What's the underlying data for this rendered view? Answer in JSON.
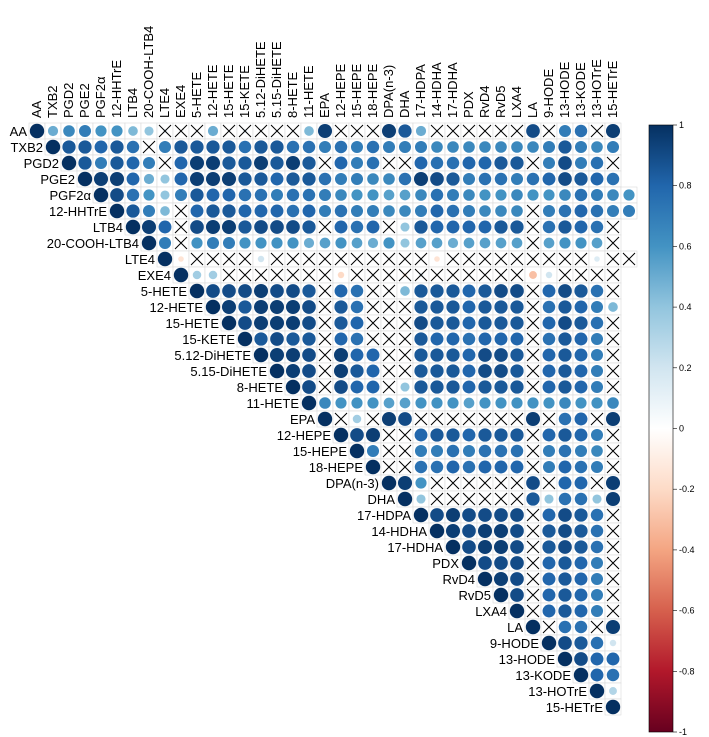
{
  "chart_data": {
    "type": "heatmap",
    "title": "",
    "variables": [
      "AA",
      "TXB2",
      "PGD2",
      "PGE2",
      "PGF2α",
      "12-HHTrE",
      "LTB4",
      "20-COOH-LTB4",
      "LTE4",
      "EXE4",
      "5-HETE",
      "12-HETE",
      "15-HETE",
      "15-KETE",
      "5.12-DiHETE",
      "5.15-DiHETE",
      "8-HETE",
      "11-HETE",
      "EPA",
      "12-HEPE",
      "15-HEPE",
      "18-HEPE",
      "DPA(n-3)",
      "DHA",
      "17-HDPA",
      "14-HDHA",
      "17-HDHA",
      "PDX",
      "RvD4",
      "RvD5",
      "LXA4",
      "LA",
      "9-HODE",
      "13-HODE",
      "13-KODE",
      "13-HOTrE",
      "15-HETrE"
    ],
    "matrix_shape": "upper-triangle",
    "marker": "circle",
    "insignificant_marker": "cross",
    "colorbar": {
      "min": -1,
      "max": 1,
      "ticks": [
        1,
        0.8,
        0.6,
        0.4,
        0.2,
        0,
        -0.2,
        -0.4,
        -0.6,
        -0.8,
        -1
      ],
      "tick_labels": [
        "1",
        "0.8",
        "0.6",
        "0.4",
        "0.2",
        "0",
        "-0.2",
        "-0.4",
        "-0.6",
        "-0.8",
        "-1"
      ],
      "colors": [
        "#67001f",
        "#b2182b",
        "#d6604d",
        "#f4a582",
        "#fddbc7",
        "#ffffff",
        "#d1e5f0",
        "#92c5de",
        "#4393c3",
        "#2166ac",
        "#053061"
      ]
    },
    "rows": [
      [
        1.0,
        0.5,
        0.65,
        0.7,
        0.6,
        0.6,
        0.45,
        0.4,
        0.1,
        0.05,
        0.05,
        0.5,
        0.05,
        0.1,
        0.05,
        0.05,
        0.05,
        0.45,
        0.95,
        0.05,
        0.05,
        0.1,
        0.95,
        0.85,
        0.5,
        0.05,
        0.05,
        0.05,
        0.05,
        0.05,
        0.05,
        0.9,
        0.05,
        0.7,
        0.75,
        0.05,
        0.95
      ],
      [
        1.0,
        0.85,
        0.85,
        0.8,
        0.85,
        0.75,
        0.05,
        0.7,
        0.85,
        0.85,
        0.85,
        0.85,
        0.75,
        0.85,
        0.85,
        0.75,
        0.75,
        0.7,
        0.75,
        0.7,
        0.75,
        0.7,
        0.7,
        0.7,
        0.65,
        0.65,
        0.65,
        0.65,
        0.65,
        0.65,
        0.65,
        0.7,
        0.85,
        0.7,
        0.65,
        0.7
      ],
      [
        1.0,
        0.85,
        0.7,
        0.85,
        0.8,
        0.7,
        0.05,
        0.8,
        0.95,
        0.95,
        0.85,
        0.85,
        0.95,
        0.85,
        0.95,
        0.85,
        0.05,
        0.8,
        0.7,
        0.75,
        0.05,
        0.05,
        0.8,
        0.75,
        0.75,
        0.8,
        0.8,
        0.85,
        0.85,
        0.05,
        0.7,
        0.9,
        0.7,
        0.75,
        0.05
      ],
      [
        1.0,
        0.95,
        0.95,
        0.8,
        0.5,
        0.4,
        0.8,
        0.95,
        0.95,
        0.95,
        0.85,
        0.85,
        0.8,
        0.85,
        0.85,
        0.75,
        0.7,
        0.7,
        0.65,
        0.65,
        0.75,
        0.95,
        0.9,
        0.85,
        0.7,
        0.75,
        0.75,
        0.7,
        0.75,
        0.8,
        0.9,
        0.85,
        0.8,
        0.75
      ],
      [
        1.0,
        0.9,
        0.75,
        0.6,
        0.4,
        0.7,
        0.85,
        0.8,
        0.8,
        0.75,
        0.75,
        0.7,
        0.75,
        0.75,
        0.7,
        0.65,
        0.6,
        0.6,
        0.55,
        0.55,
        0.65,
        0.75,
        0.7,
        0.65,
        0.6,
        0.6,
        0.65,
        0.6,
        0.6,
        0.65,
        0.75,
        0.7,
        0.65,
        0.6
      ],
      [
        1.0,
        0.85,
        0.7,
        0.45,
        0.05,
        0.8,
        0.85,
        0.85,
        0.8,
        0.8,
        0.8,
        0.75,
        0.8,
        0.7,
        0.75,
        0.7,
        0.7,
        0.65,
        0.65,
        0.7,
        0.8,
        0.75,
        0.7,
        0.65,
        0.65,
        0.65,
        0.05,
        0.7,
        0.75,
        0.8,
        0.75,
        0.7,
        0.7
      ],
      [
        1.0,
        0.95,
        0.8,
        0.05,
        0.9,
        0.95,
        0.95,
        0.85,
        0.9,
        0.9,
        0.9,
        0.85,
        0.05,
        0.8,
        0.75,
        0.8,
        0.05,
        0.4,
        0.85,
        0.8,
        0.8,
        0.8,
        0.8,
        0.85,
        0.85,
        0.05,
        0.75,
        0.85,
        0.8,
        0.75,
        0.05
      ],
      [
        1.0,
        0.7,
        0.05,
        0.6,
        0.7,
        0.7,
        0.6,
        0.6,
        0.6,
        0.6,
        0.5,
        0.55,
        0.6,
        0.55,
        0.5,
        0.6,
        0.4,
        0.55,
        0.55,
        0.5,
        0.55,
        0.55,
        0.55,
        0.55,
        0.05,
        0.55,
        0.6,
        0.6,
        0.55,
        0.05
      ],
      [
        1.0,
        -0.15,
        0.05,
        0.05,
        0.05,
        0.05,
        0.2,
        0.05,
        0.05,
        0.05,
        0.05,
        0.05,
        0.05,
        0.05,
        0.05,
        0.05,
        0.05,
        -0.15,
        0.05,
        0.05,
        0.05,
        0.05,
        0.05,
        0.05,
        0.05,
        0.05,
        0.05,
        0.15,
        0.05,
        0.05
      ],
      [
        1.0,
        0.35,
        0.35,
        0.05,
        0.05,
        0.05,
        0.05,
        0.05,
        0.05,
        0.05,
        -0.2,
        0.05,
        0.05,
        0.05,
        -0.1,
        0.1,
        0.05,
        0.05,
        0.05,
        0.05,
        0.05,
        0.05,
        -0.3,
        0.2,
        0.05,
        0.05,
        0.05,
        0.05
      ],
      [
        1.0,
        0.9,
        0.9,
        0.9,
        0.95,
        0.9,
        0.9,
        0.85,
        0.05,
        0.8,
        0.75,
        0.05,
        0.05,
        0.45,
        0.85,
        0.85,
        0.85,
        0.8,
        0.85,
        0.9,
        0.9,
        0.05,
        0.8,
        0.9,
        0.85,
        0.75,
        0.05
      ],
      [
        1.0,
        0.95,
        0.85,
        0.95,
        0.95,
        0.95,
        0.9,
        0.05,
        0.85,
        0.75,
        0.05,
        0.05,
        0.05,
        0.85,
        0.85,
        0.85,
        0.8,
        0.85,
        0.85,
        0.85,
        0.05,
        0.75,
        0.85,
        0.8,
        0.7,
        0.45
      ],
      [
        1.0,
        0.9,
        0.95,
        0.95,
        0.95,
        0.9,
        0.05,
        0.85,
        0.8,
        0.05,
        0.05,
        0.1,
        0.9,
        0.85,
        0.85,
        0.8,
        0.85,
        0.85,
        0.85,
        0.05,
        0.8,
        0.9,
        0.85,
        0.75,
        0.05
      ],
      [
        1.0,
        0.85,
        0.9,
        0.85,
        0.85,
        0.05,
        0.8,
        0.75,
        0.05,
        0.05,
        0.05,
        0.85,
        0.8,
        0.8,
        0.75,
        0.8,
        0.8,
        0.8,
        0.05,
        0.75,
        0.85,
        0.8,
        0.7,
        0.05
      ],
      [
        1.0,
        0.95,
        0.95,
        0.9,
        0.05,
        0.95,
        0.8,
        0.8,
        0.05,
        0.05,
        0.85,
        0.85,
        0.85,
        0.8,
        0.9,
        0.9,
        0.85,
        0.05,
        0.8,
        0.85,
        0.8,
        0.7,
        0.05
      ],
      [
        1.0,
        0.95,
        0.9,
        0.05,
        0.95,
        0.85,
        0.8,
        0.05,
        0.05,
        0.85,
        0.85,
        0.85,
        0.8,
        0.9,
        0.9,
        0.85,
        0.05,
        0.8,
        0.85,
        0.8,
        0.7,
        0.05
      ],
      [
        1.0,
        0.9,
        0.05,
        0.9,
        0.8,
        0.8,
        0.05,
        0.4,
        0.85,
        0.85,
        0.85,
        0.8,
        0.85,
        0.85,
        0.85,
        0.05,
        0.8,
        0.85,
        0.8,
        0.7,
        0.05
      ],
      [
        1.0,
        0.65,
        0.6,
        0.6,
        0.6,
        0.55,
        0.55,
        0.6,
        0.6,
        0.6,
        0.55,
        0.6,
        0.6,
        0.6,
        0.6,
        0.6,
        0.65,
        0.6,
        0.6,
        0.65
      ],
      [
        1.0,
        0.05,
        0.35,
        0.05,
        0.95,
        0.9,
        0.05,
        0.05,
        0.05,
        0.05,
        0.05,
        0.05,
        0.05,
        0.95,
        0.05,
        0.75,
        0.8,
        0.05,
        0.95
      ],
      [
        1.0,
        0.9,
        0.95,
        0.05,
        0.05,
        0.8,
        0.85,
        0.85,
        0.8,
        0.85,
        0.85,
        0.85,
        0.05,
        0.8,
        0.85,
        0.8,
        0.7,
        0.05
      ],
      [
        1.0,
        0.7,
        0.05,
        0.05,
        0.7,
        0.7,
        0.75,
        0.7,
        0.75,
        0.75,
        0.75,
        0.05,
        0.7,
        0.75,
        0.7,
        0.65,
        0.05
      ],
      [
        1.0,
        0.05,
        0.05,
        0.75,
        0.75,
        0.8,
        0.75,
        0.8,
        0.8,
        0.8,
        0.05,
        0.7,
        0.8,
        0.75,
        0.7,
        0.05
      ],
      [
        1.0,
        0.95,
        0.6,
        0.05,
        0.05,
        0.05,
        0.05,
        0.05,
        0.05,
        0.9,
        0.05,
        0.8,
        0.8,
        0.05,
        0.95
      ],
      [
        1.0,
        0.4,
        0.05,
        0.05,
        0.05,
        0.05,
        0.05,
        0.05,
        0.85,
        0.4,
        0.75,
        0.75,
        0.4,
        0.95
      ],
      [
        1.0,
        0.9,
        0.95,
        0.9,
        0.9,
        0.9,
        0.9,
        0.05,
        0.8,
        0.9,
        0.85,
        0.75,
        0.05
      ],
      [
        1.0,
        0.95,
        0.9,
        0.95,
        0.95,
        0.9,
        0.05,
        0.85,
        0.9,
        0.85,
        0.75,
        0.05
      ],
      [
        1.0,
        0.9,
        0.95,
        0.95,
        0.9,
        0.05,
        0.85,
        0.9,
        0.85,
        0.75,
        0.05
      ],
      [
        1.0,
        0.9,
        0.9,
        0.9,
        0.05,
        0.8,
        0.85,
        0.8,
        0.7,
        0.05
      ],
      [
        1.0,
        0.95,
        0.9,
        0.05,
        0.8,
        0.85,
        0.8,
        0.7,
        0.05
      ],
      [
        1.0,
        0.9,
        0.05,
        0.8,
        0.85,
        0.8,
        0.7,
        0.05
      ],
      [
        1.0,
        0.05,
        0.8,
        0.85,
        0.8,
        0.7,
        0.05
      ],
      [
        1.0,
        0.05,
        0.75,
        0.75,
        0.05,
        0.95
      ],
      [
        1.0,
        0.9,
        0.85,
        0.75,
        0.2
      ],
      [
        1.0,
        0.9,
        0.8,
        0.8
      ],
      [
        1.0,
        0.8,
        0.75
      ],
      [
        1.0,
        0.3
      ],
      [
        1.0
      ]
    ]
  }
}
